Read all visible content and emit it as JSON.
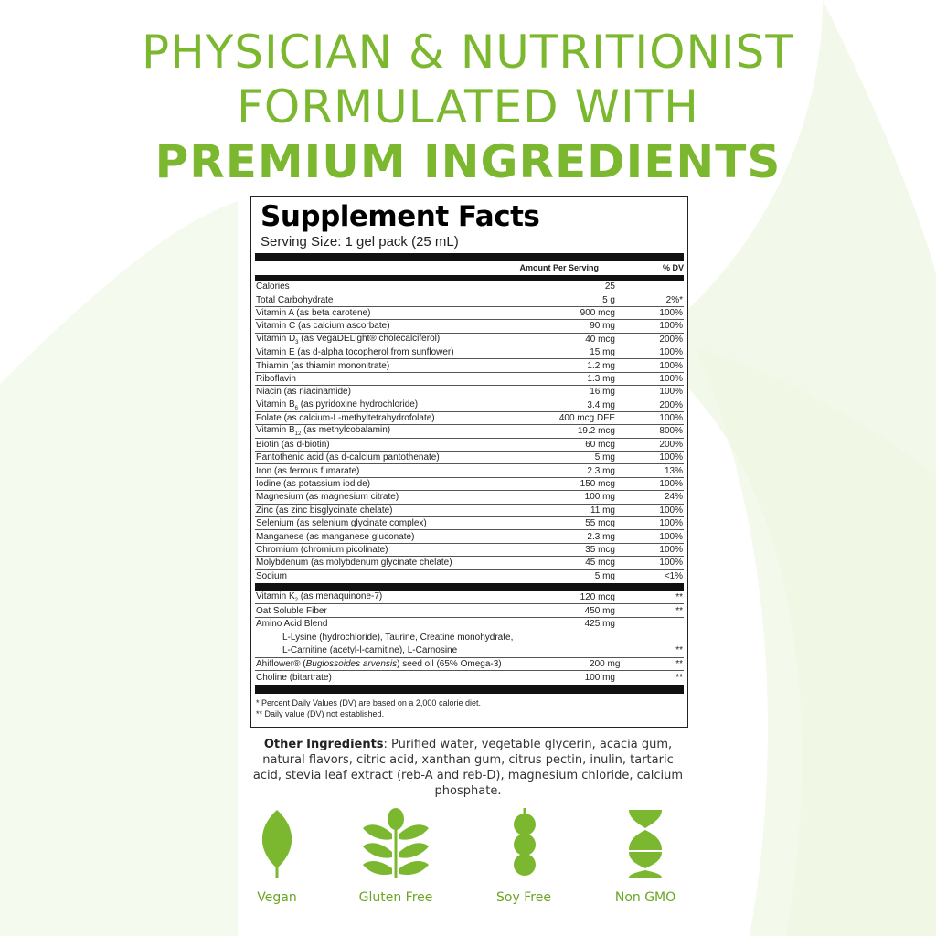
{
  "headline": {
    "line1": "PHYSICIAN & NUTRITIONIST",
    "line2": "FORMULATED WITH",
    "line3": "PREMIUM INGREDIENTS"
  },
  "colors": {
    "accent": "#7cb82f",
    "background_swoosh": "#f2f8e8"
  },
  "facts": {
    "title": "Supplement Facts",
    "serving_size": "Serving Size: 1 gel pack (25 mL)",
    "header": {
      "amount": "Amount Per Serving",
      "dv": "% DV"
    },
    "rows": [
      {
        "name": "Calories",
        "amount": "25",
        "dv": ""
      },
      {
        "name": "Total Carbohydrate",
        "amount": "5 g",
        "dv": "2%*"
      },
      {
        "name": "Vitamin A (as beta carotene)",
        "amount": "900 mcg",
        "dv": "100%"
      },
      {
        "name": "Vitamin C (as calcium ascorbate)",
        "amount": "90 mg",
        "dv": "100%"
      },
      {
        "name": "Vitamin D",
        "sub": "3",
        "rest": " (as VegaDELight® cholecalciferol)",
        "amount": "40 mcg",
        "dv": "200%"
      },
      {
        "name": "Vitamin E (as d-alpha tocopherol from sunflower)",
        "amount": "15 mg",
        "dv": "100%"
      },
      {
        "name": "Thiamin (as thiamin mononitrate)",
        "amount": "1.2 mg",
        "dv": "100%"
      },
      {
        "name": "Riboflavin",
        "amount": "1.3 mg",
        "dv": "100%"
      },
      {
        "name": "Niacin (as niacinamide)",
        "amount": "16 mg",
        "dv": "100%"
      },
      {
        "name": "Vitamin B",
        "sub": "6",
        "rest": " (as pyridoxine hydrochloride)",
        "amount": "3.4 mg",
        "dv": "200%"
      },
      {
        "name": "Folate (as calcium-L-methyltetrahydrofolate)",
        "amount": "400 mcg DFE",
        "dv": "100%"
      },
      {
        "name": "Vitamin B",
        "sub": "12",
        "rest": " (as methylcobalamin)",
        "amount": "19.2 mcg",
        "dv": "800%"
      },
      {
        "name": "Biotin (as d-biotin)",
        "amount": "60 mcg",
        "dv": "200%"
      },
      {
        "name": "Pantothenic acid (as d-calcium pantothenate)",
        "amount": "5 mg",
        "dv": "100%"
      },
      {
        "name": "Iron (as ferrous fumarate)",
        "amount": "2.3 mg",
        "dv": "13%"
      },
      {
        "name": "Iodine (as potassium iodide)",
        "amount": "150 mcg",
        "dv": "100%"
      },
      {
        "name": "Magnesium (as magnesium citrate)",
        "amount": "100 mg",
        "dv": "24%"
      },
      {
        "name": "Zinc (as zinc bisglycinate chelate)",
        "amount": "11 mg",
        "dv": "100%"
      },
      {
        "name": "Selenium (as selenium glycinate complex)",
        "amount": "55 mcg",
        "dv": "100%"
      },
      {
        "name": "Manganese (as manganese gluconate)",
        "amount": "2.3 mg",
        "dv": "100%"
      },
      {
        "name": "Chromium (chromium picolinate)",
        "amount": "35 mcg",
        "dv": "100%"
      },
      {
        "name": "Molybdenum (as molybdenum glycinate chelate)",
        "amount": "45 mcg",
        "dv": "100%"
      },
      {
        "name": "Sodium",
        "amount": "5 mg",
        "dv": "<1%"
      }
    ],
    "rows2": [
      {
        "name": "Vitamin K",
        "sub": "2",
        "rest": " (as menaquinone-7)",
        "amount": "120 mcg",
        "dv": "**"
      },
      {
        "name": "Oat Soluble Fiber",
        "amount": "450 mg",
        "dv": "**"
      }
    ],
    "blend": {
      "name": "Amino Acid Blend",
      "amount": "425 mg",
      "line1": "L-Lysine (hydrochloride), Taurine, Creatine monohydrate,",
      "line2": "L-Carnitine (acetyl-l-carnitine), L-Carnosine",
      "dv": "**"
    },
    "rows3": [
      {
        "name": "Ahiflower® (",
        "italic": "Buglossoides arvensis",
        "rest": ") seed oil (65% Omega-3)",
        "amount": "200 mg",
        "dv": "**"
      },
      {
        "name": "Choline (bitartrate)",
        "amount": "100 mg",
        "dv": "**"
      }
    ],
    "footnote1": "* Percent Daily Values (DV) are based on a 2,000 calorie diet.",
    "footnote2": "** Daily value (DV) not established."
  },
  "other_ingredients": {
    "label": "Other Ingredients",
    "text": ": Purified water, vegetable glycerin, acacia gum, natural flavors, citric acid, xanthan gum, citrus pectin, inulin, tartaric acid, stevia leaf extract (reb-A and reb-D), magnesium chloride, calcium phosphate."
  },
  "badges": [
    {
      "label": "Vegan",
      "icon": "leaf-icon"
    },
    {
      "label": "Gluten Free",
      "icon": "wheat-icon"
    },
    {
      "label": "Soy Free",
      "icon": "soybean-icon"
    },
    {
      "label": "Non GMO",
      "icon": "dna-icon"
    }
  ]
}
